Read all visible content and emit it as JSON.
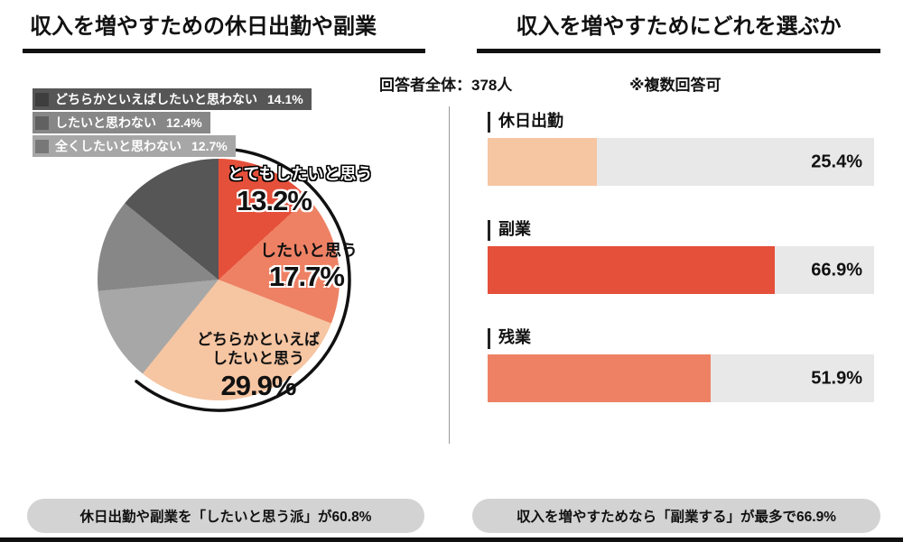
{
  "header": {
    "left_title": "収入を増やすための休日出勤や副業",
    "right_title": "収入を増やすためにどれを選ぶか",
    "respondents": "回答者全体：378人",
    "note": "※複数回答可"
  },
  "captions": {
    "left": "休日出勤や副業を「したいと思う派」が60.8%",
    "right": "収入を増やすためなら「副業する」が最多で66.9%"
  },
  "chart_data": [
    {
      "type": "pie",
      "title": "収入を増やすための休日出勤や副業",
      "start_angle": "12時方向",
      "direction": "clockwise",
      "slices": [
        {
          "label": "とてもしたいと思う",
          "value": 13.2,
          "pct_label": "13.2%",
          "color": "#e5503a"
        },
        {
          "label": "したいと思う",
          "value": 17.7,
          "pct_label": "17.7%",
          "color": "#ee8164"
        },
        {
          "label": "どちらかといえばしたいと思う",
          "value": 29.9,
          "pct_label": "29.9%",
          "color": "#f6c5a2",
          "label_lines": [
            "どちらかといえば",
            "したいと思う"
          ]
        },
        {
          "label": "全くしたいと思わない",
          "value": 12.7,
          "pct_label": "12.7%",
          "color": "#a7a7a7"
        },
        {
          "label": "したいと思わない",
          "value": 12.4,
          "pct_label": "12.4%",
          "color": "#878787"
        },
        {
          "label": "どちらかといえばしたいと思わない",
          "value": 14.1,
          "pct_label": "14.1%",
          "color": "#565656"
        }
      ],
      "highlight": {
        "slice_indexes": [
          0,
          1,
          2
        ],
        "total": 60.8,
        "style": "black outer arc around したいと思う派"
      },
      "legend_position": "top-left",
      "legend_order": [
        5,
        4,
        3
      ]
    },
    {
      "type": "bar",
      "orientation": "horizontal",
      "title": "収入を増やすためにどれを選ぶか",
      "categories": [
        "休日出勤",
        "副業",
        "残業"
      ],
      "values": [
        25.4,
        66.9,
        51.9
      ],
      "value_labels": [
        "25.4%",
        "66.9%",
        "51.9%"
      ],
      "colors": [
        "#f6c5a2",
        "#e5503a",
        "#ee8164"
      ],
      "track_color": "#e8e8e8",
      "xlim": [
        0,
        90
      ],
      "grid": false,
      "legend": false
    }
  ]
}
